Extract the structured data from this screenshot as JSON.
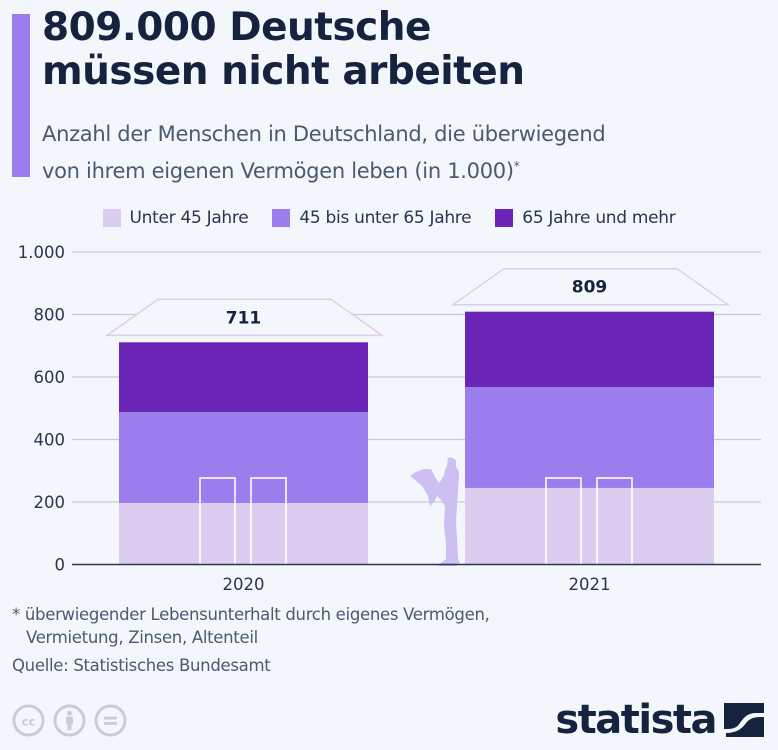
{
  "header": {
    "title_line1": "809.000 Deutsche",
    "title_line2": "müssen nicht arbeiten",
    "subtitle_line1": "Anzahl der Menschen in Deutschland, die überwiegend",
    "subtitle_line2": "von ihrem eigenen Vermögen leben (in 1.000)",
    "subtitle_mark": "*"
  },
  "colors": {
    "accent": "#9b7ded",
    "under45": "#dccdf0",
    "age45to65": "#9b7ded",
    "age65plus": "#6b25b6",
    "text_dark": "#15233f",
    "roof": "#dccdf0",
    "figure": "#cdbff2"
  },
  "chart_data": {
    "type": "bar",
    "stacked": true,
    "title": "809.000 Deutsche müssen nicht arbeiten",
    "subtitle": "Anzahl der Menschen in Deutschland, die überwiegend von ihrem eigenen Vermögen leben (in 1.000)*",
    "categories": [
      "2020",
      "2021"
    ],
    "series": [
      {
        "name": "Unter 45 Jahre",
        "values": [
          197,
          245
        ],
        "color": "#dccdf0"
      },
      {
        "name": "45 bis unter 65 Jahre",
        "values": [
          291,
          323
        ],
        "color": "#9b7ded"
      },
      {
        "name": "65 Jahre und mehr",
        "values": [
          223,
          241
        ],
        "color": "#6b25b6"
      }
    ],
    "totals": [
      711,
      809
    ],
    "total_labels": [
      "711",
      "809"
    ],
    "ylim": [
      0,
      1000
    ],
    "yticks": [
      0,
      200,
      400,
      600,
      800,
      1000
    ],
    "ytick_labels": [
      "0",
      "200",
      "400",
      "600",
      "800",
      "1.000"
    ],
    "xlabel": "",
    "ylabel": "",
    "grid": true,
    "legend_position": "top"
  },
  "footer": {
    "footnote_line1": "* überwiegender Lebensunterhalt durch eigenes Vermögen,",
    "footnote_line2": "Vermietung, Zinsen, Altenteil",
    "source": "Quelle: Statistisches Bundesamt",
    "brand": "statista",
    "license_icons": [
      "cc-icon",
      "attribution-icon",
      "no-derivatives-icon"
    ]
  }
}
